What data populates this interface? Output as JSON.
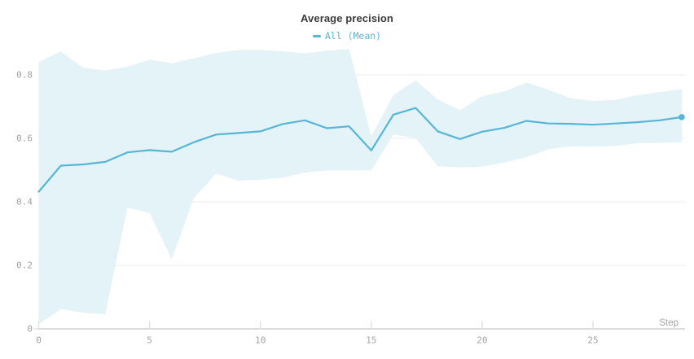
{
  "chart_data": {
    "type": "line",
    "title": "Average precision",
    "xlabel": "Step",
    "ylabel": "",
    "legend_position": "top-center",
    "grid": "horizontal-only",
    "xlim": [
      0,
      29.15
    ],
    "ylim": [
      0,
      0.895
    ],
    "x_ticks": [
      {
        "v": 0,
        "label": "0"
      },
      {
        "v": 5,
        "label": "5"
      },
      {
        "v": 10,
        "label": "10"
      },
      {
        "v": 15,
        "label": "15"
      },
      {
        "v": 20,
        "label": "20"
      },
      {
        "v": 25,
        "label": "25"
      }
    ],
    "y_ticks": [
      {
        "v": 0,
        "label": "0"
      },
      {
        "v": 0.2,
        "label": "0.2"
      },
      {
        "v": 0.4,
        "label": "0.4"
      },
      {
        "v": 0.6,
        "label": "0.6"
      },
      {
        "v": 0.8,
        "label": "0.8"
      }
    ],
    "x": [
      0,
      1,
      2,
      3,
      4,
      5,
      6,
      7,
      8,
      9,
      10,
      11,
      12,
      13,
      14,
      15,
      16,
      17,
      18,
      19,
      20,
      21,
      22,
      23,
      24,
      25,
      26,
      27,
      28,
      29
    ],
    "series": [
      {
        "name": "All (Mean)",
        "role": "mean-with-minmax-band",
        "end_marker": true,
        "values": [
          0.432,
          0.514,
          0.518,
          0.526,
          0.556,
          0.563,
          0.558,
          0.588,
          0.612,
          0.617,
          0.622,
          0.645,
          0.657,
          0.632,
          0.638,
          0.562,
          0.675,
          0.696,
          0.622,
          0.598,
          0.621,
          0.633,
          0.655,
          0.647,
          0.646,
          0.643,
          0.647,
          0.651,
          0.657,
          0.667
        ],
        "band_upper": [
          0.84,
          0.874,
          0.822,
          0.814,
          0.826,
          0.848,
          0.837,
          0.852,
          0.869,
          0.879,
          0.879,
          0.874,
          0.868,
          0.876,
          0.882,
          0.607,
          0.737,
          0.783,
          0.722,
          0.689,
          0.733,
          0.748,
          0.776,
          0.753,
          0.726,
          0.718,
          0.721,
          0.736,
          0.746,
          0.756
        ],
        "band_lower": [
          0.015,
          0.062,
          0.051,
          0.046,
          0.382,
          0.365,
          0.22,
          0.412,
          0.489,
          0.467,
          0.47,
          0.476,
          0.492,
          0.499,
          0.499,
          0.5,
          0.612,
          0.601,
          0.512,
          0.509,
          0.511,
          0.524,
          0.541,
          0.566,
          0.575,
          0.574,
          0.576,
          0.585,
          0.586,
          0.588
        ]
      }
    ]
  },
  "colors": {
    "accent": "#56b6d8",
    "band_fill": "#e4f3f8",
    "title_text": "#3b3b3b",
    "tick_text": "#a3a3a3",
    "gridline": "#ededed",
    "axis_line": "#dcdcdc",
    "tick_mark": "#e2e2e2",
    "background": "#ffffff"
  }
}
